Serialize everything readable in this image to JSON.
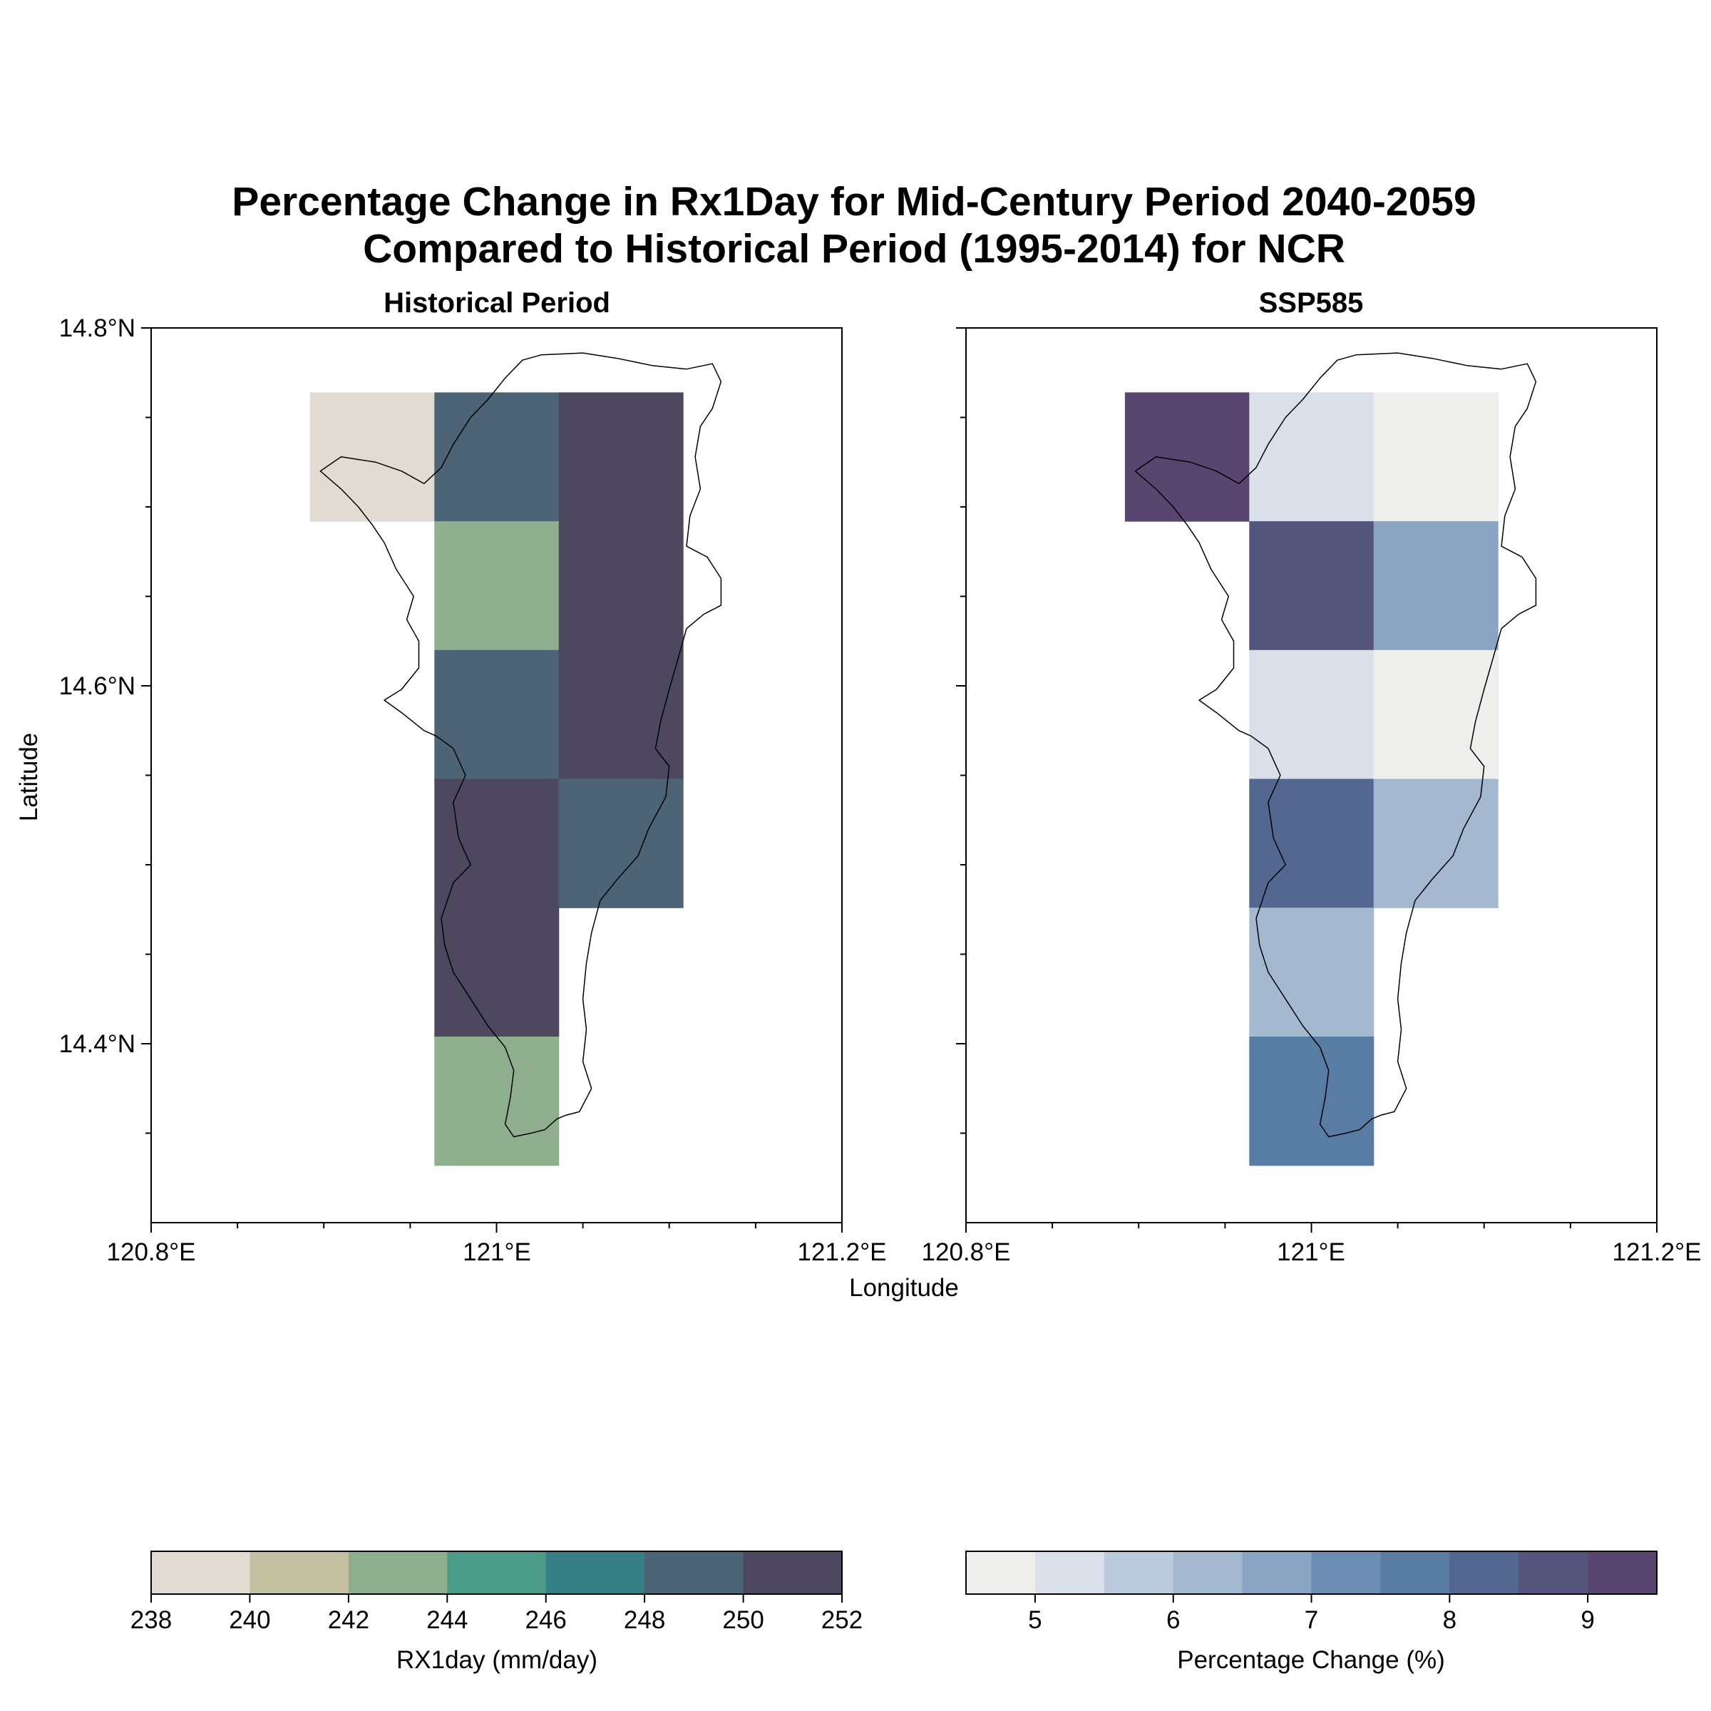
{
  "figure": {
    "title_line1": "Percentage Change in Rx1Day for Mid-Century Period 2040-2059",
    "title_line2": "Compared to Historical Period (1995-2014) for NCR",
    "xlabel": "Longitude",
    "ylabel": "Latitude"
  },
  "panels": [
    {
      "title": "Historical Period",
      "x_ticks": [
        "120.8°E",
        "121°E",
        "121.2°E"
      ],
      "y_ticks": [
        "14.8°N",
        "14.6°N",
        "14.4°N"
      ]
    },
    {
      "title": "SSP585",
      "x_ticks": [
        "120.8°E",
        "121°E",
        "121.2°E"
      ],
      "y_ticks": []
    }
  ],
  "colorbars": [
    {
      "label": "RX1day (mm/day)",
      "ticks": [
        "238",
        "240",
        "242",
        "244",
        "246",
        "248",
        "250",
        "252"
      ],
      "colors": [
        "#e2dbd2",
        "#c4c1a0",
        "#8fae8d",
        "#4a9c89",
        "#377f86",
        "#4d6376",
        "#4d4760"
      ]
    },
    {
      "label": "Percentage Change (%)",
      "ticks": [
        "5",
        "6",
        "7",
        "8",
        "9"
      ],
      "colors": [
        "#eeefed",
        "#d9e0ea",
        "#bccbdb",
        "#a4b8cf",
        "#89a4c2",
        "#6c8db3",
        "#587ca4",
        "#546791",
        "#55547c",
        "#594670"
      ]
    }
  ],
  "chart_data": [
    {
      "type": "heatmap",
      "title": "Historical Period",
      "xlim": [
        120.8,
        121.2
      ],
      "ylim": [
        14.3,
        14.8
      ],
      "cell_size_deg": 0.072,
      "color_range": [
        238,
        252
      ],
      "colorbar_label": "RX1day (mm/day)",
      "cells": [
        {
          "lon": 120.928,
          "lat": 14.728,
          "value": 239.0
        },
        {
          "lon": 121.0,
          "lat": 14.728,
          "value": 249.5
        },
        {
          "lon": 121.072,
          "lat": 14.728,
          "value": 251.0
        },
        {
          "lon": 121.0,
          "lat": 14.656,
          "value": 243.0
        },
        {
          "lon": 121.072,
          "lat": 14.656,
          "value": 251.0
        },
        {
          "lon": 121.0,
          "lat": 14.584,
          "value": 249.5
        },
        {
          "lon": 121.072,
          "lat": 14.584,
          "value": 251.0
        },
        {
          "lon": 121.0,
          "lat": 14.512,
          "value": 251.0
        },
        {
          "lon": 121.072,
          "lat": 14.512,
          "value": 249.5
        },
        {
          "lon": 121.0,
          "lat": 14.44,
          "value": 251.0
        },
        {
          "lon": 121.0,
          "lat": 14.368,
          "value": 243.0
        }
      ]
    },
    {
      "type": "heatmap",
      "title": "SSP585",
      "xlim": [
        120.8,
        121.2
      ],
      "ylim": [
        14.3,
        14.8
      ],
      "cell_size_deg": 0.072,
      "color_range": [
        4.5,
        9.5
      ],
      "colorbar_label": "Percentage Change (%)",
      "cells": [
        {
          "lon": 120.928,
          "lat": 14.728,
          "value": 9.3
        },
        {
          "lon": 121.0,
          "lat": 14.728,
          "value": 5.2
        },
        {
          "lon": 121.072,
          "lat": 14.728,
          "value": 4.8
        },
        {
          "lon": 121.0,
          "lat": 14.656,
          "value": 8.8
        },
        {
          "lon": 121.072,
          "lat": 14.656,
          "value": 6.8
        },
        {
          "lon": 121.0,
          "lat": 14.584,
          "value": 5.2
        },
        {
          "lon": 121.072,
          "lat": 14.584,
          "value": 4.8
        },
        {
          "lon": 121.0,
          "lat": 14.512,
          "value": 8.3
        },
        {
          "lon": 121.072,
          "lat": 14.512,
          "value": 6.3
        },
        {
          "lon": 121.0,
          "lat": 14.44,
          "value": 6.3
        },
        {
          "lon": 121.0,
          "lat": 14.368,
          "value": 7.8
        }
      ]
    }
  ],
  "coastline": [
    [
      121.026,
      14.785
    ],
    [
      121.05,
      14.786
    ],
    [
      121.07,
      14.783
    ],
    [
      121.09,
      14.779
    ],
    [
      121.11,
      14.777
    ],
    [
      121.125,
      14.78
    ],
    [
      121.13,
      14.77
    ],
    [
      121.125,
      14.755
    ],
    [
      121.118,
      14.745
    ],
    [
      121.115,
      14.728
    ],
    [
      121.118,
      14.71
    ],
    [
      121.112,
      14.695
    ],
    [
      121.11,
      14.678
    ],
    [
      121.122,
      14.672
    ],
    [
      121.13,
      14.66
    ],
    [
      121.13,
      14.645
    ],
    [
      121.12,
      14.64
    ],
    [
      121.11,
      14.632
    ],
    [
      121.105,
      14.615
    ],
    [
      121.1,
      14.598
    ],
    [
      121.095,
      14.58
    ],
    [
      121.092,
      14.565
    ],
    [
      121.1,
      14.555
    ],
    [
      121.098,
      14.538
    ],
    [
      121.088,
      14.52
    ],
    [
      121.082,
      14.505
    ],
    [
      121.07,
      14.492
    ],
    [
      121.06,
      14.48
    ],
    [
      121.055,
      14.462
    ],
    [
      121.052,
      14.445
    ],
    [
      121.05,
      14.425
    ],
    [
      121.052,
      14.408
    ],
    [
      121.05,
      14.39
    ],
    [
      121.055,
      14.375
    ],
    [
      121.048,
      14.362
    ],
    [
      121.04,
      14.36
    ],
    [
      121.035,
      14.358
    ],
    [
      121.028,
      14.352
    ],
    [
      121.02,
      14.35
    ],
    [
      121.01,
      14.348
    ],
    [
      121.005,
      14.355
    ],
    [
      121.008,
      14.37
    ],
    [
      121.01,
      14.385
    ],
    [
      121.005,
      14.398
    ],
    [
      120.995,
      14.41
    ],
    [
      120.985,
      14.425
    ],
    [
      120.975,
      14.44
    ],
    [
      120.97,
      14.455
    ],
    [
      120.968,
      14.47
    ],
    [
      120.975,
      14.49
    ],
    [
      120.985,
      14.5
    ],
    [
      120.978,
      14.515
    ],
    [
      120.975,
      14.535
    ],
    [
      120.982,
      14.55
    ],
    [
      120.975,
      14.565
    ],
    [
      120.965,
      14.572
    ],
    [
      120.958,
      14.575
    ],
    [
      120.945,
      14.585
    ],
    [
      120.935,
      14.592
    ],
    [
      120.945,
      14.598
    ],
    [
      120.955,
      14.61
    ],
    [
      120.955,
      14.625
    ],
    [
      120.948,
      14.637
    ],
    [
      120.952,
      14.65
    ],
    [
      120.942,
      14.665
    ],
    [
      120.935,
      14.68
    ],
    [
      120.928,
      14.69
    ],
    [
      120.92,
      14.7
    ],
    [
      120.91,
      14.71
    ],
    [
      120.898,
      14.72
    ],
    [
      120.91,
      14.728
    ],
    [
      120.93,
      14.725
    ],
    [
      120.945,
      14.72
    ],
    [
      120.958,
      14.713
    ],
    [
      120.968,
      14.722
    ],
    [
      120.975,
      14.735
    ],
    [
      120.985,
      14.75
    ],
    [
      120.995,
      14.76
    ],
    [
      121.005,
      14.772
    ],
    [
      121.015,
      14.782
    ],
    [
      121.026,
      14.785
    ]
  ]
}
